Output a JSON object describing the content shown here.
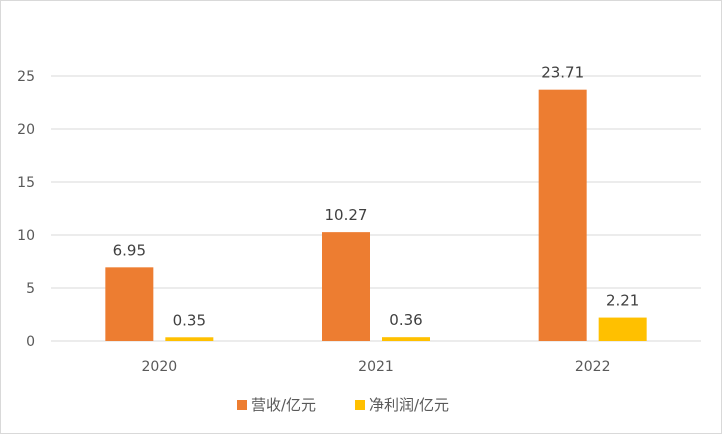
{
  "chart_data": {
    "type": "bar",
    "categories": [
      "2020",
      "2021",
      "2022"
    ],
    "series": [
      {
        "name": "营收/亿元",
        "values": [
          6.95,
          10.27,
          23.71
        ],
        "color": "#ED7D31"
      },
      {
        "name": "净利润/亿元",
        "values": [
          0.35,
          0.36,
          2.21
        ],
        "color": "#FFC000"
      }
    ],
    "ylim": [
      0,
      25
    ],
    "yticks": [
      0,
      5,
      10,
      15,
      20,
      25
    ],
    "grid": true,
    "legend": "bottom",
    "gridline_color": "#d9d9d9"
  }
}
